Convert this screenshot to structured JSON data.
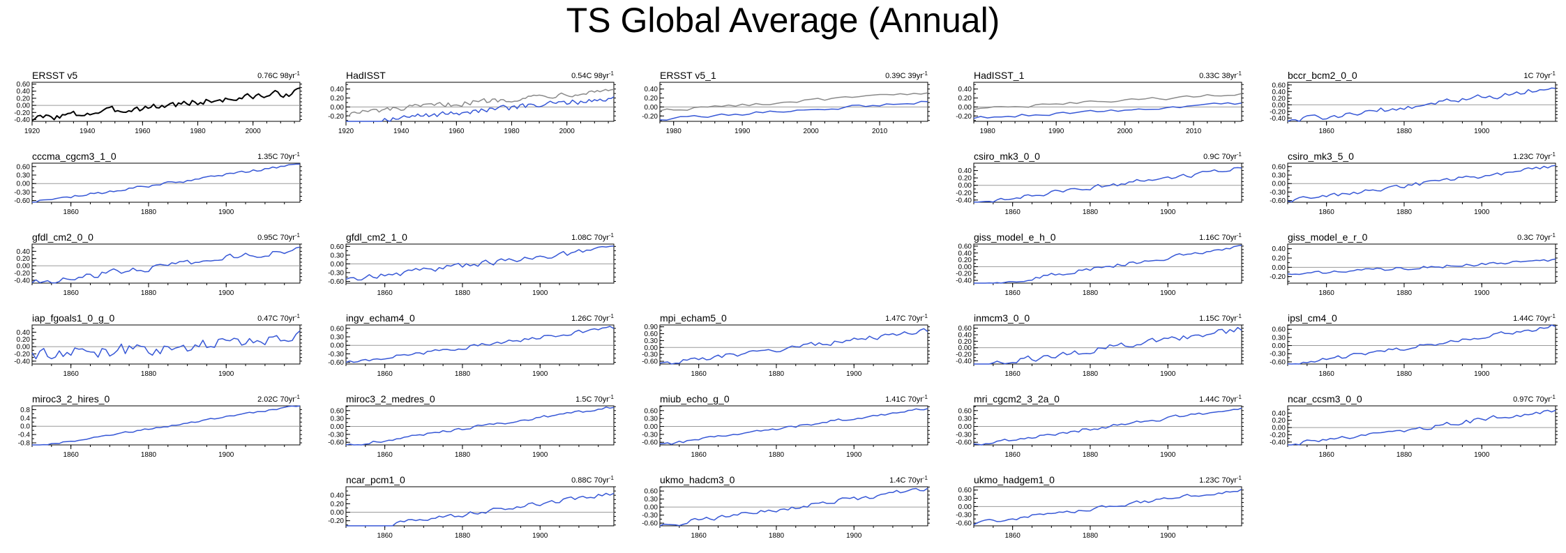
{
  "title": "TS Global Average (Annual)",
  "colors": {
    "model": "#3657d6",
    "obs": "#000000",
    "obs_gray": "#8a8a8a",
    "zero_line": "#9a9a9a"
  },
  "chart_data": [
    {
      "type": "line",
      "name": "ERSST v5",
      "trend_label": "0.76C 98yr",
      "x_start": 1920,
      "x_end": 2017,
      "x_ticks": [
        1920,
        1940,
        1960,
        1980,
        2000
      ],
      "y_ticks": [
        "0.60",
        "0.40",
        "0.20",
        "0.00",
        "-0.20",
        "-0.40"
      ],
      "ylim": [
        -0.45,
        0.65
      ],
      "trend": 0.76,
      "noise": 0.09,
      "series": [
        "obs"
      ],
      "grid_row": 0,
      "grid_col": 0
    },
    {
      "type": "line",
      "name": "HadISST",
      "trend_label": "0.54C 98yr",
      "x_start": 1920,
      "x_end": 2017,
      "x_ticks": [
        1920,
        1940,
        1960,
        1980,
        2000
      ],
      "y_ticks": [
        "0.40",
        "0.20",
        "0.00",
        "-0.20"
      ],
      "ylim": [
        -0.32,
        0.55
      ],
      "trend": 0.54,
      "noise": 0.07,
      "series": [
        "model",
        "obs_gray"
      ],
      "grid_row": 0,
      "grid_col": 1
    },
    {
      "type": "line",
      "name": "ERSST v5_1",
      "trend_label": "0.39C 39yr",
      "x_start": 1978,
      "x_end": 2017,
      "x_ticks": [
        1980,
        1990,
        2000,
        2010
      ],
      "y_ticks": [
        "0.40",
        "0.20",
        "0.00",
        "-0.20"
      ],
      "ylim": [
        -0.32,
        0.55
      ],
      "trend": 0.39,
      "noise": 0.04,
      "series": [
        "model",
        "obs_gray"
      ],
      "grid_row": 0,
      "grid_col": 2
    },
    {
      "type": "line",
      "name": "HadISST_1",
      "trend_label": "0.33C 38yr",
      "x_start": 1978,
      "x_end": 2017,
      "x_ticks": [
        1980,
        1990,
        2000,
        2010
      ],
      "y_ticks": [
        "0.40",
        "0.20",
        "0.00",
        "-0.20"
      ],
      "ylim": [
        -0.32,
        0.55
      ],
      "trend": 0.33,
      "noise": 0.04,
      "series": [
        "model",
        "obs_gray"
      ],
      "grid_row": 0,
      "grid_col": 3
    },
    {
      "type": "line",
      "name": "bccr_bcm2_0_0",
      "trend_label": "1C 70yr",
      "x_start": 1850,
      "x_end": 1919,
      "x_ticks": [
        1860,
        1880,
        1900
      ],
      "y_ticks": [
        "0.60",
        "0.40",
        "0.20",
        "0.00",
        "-0.20",
        "-0.40"
      ],
      "ylim": [
        -0.5,
        0.68
      ],
      "trend": 1.0,
      "noise": 0.08,
      "series": [
        "model"
      ],
      "grid_row": 0,
      "grid_col": 4
    },
    {
      "type": "line",
      "name": "cccma_cgcm3_1_0",
      "trend_label": "1.35C 70yr",
      "x_start": 1850,
      "x_end": 1919,
      "x_ticks": [
        1860,
        1880,
        1900
      ],
      "y_ticks": [
        "0.60",
        "0.30",
        "0.00",
        "-0.30",
        "-0.60"
      ],
      "ylim": [
        -0.66,
        0.72
      ],
      "trend": 1.35,
      "noise": 0.05,
      "series": [
        "model"
      ],
      "grid_row": 1,
      "grid_col": 0
    },
    {
      "type": "line",
      "name": "csiro_mk3_0_0",
      "trend_label": "0.9C 70yr",
      "x_start": 1850,
      "x_end": 1919,
      "x_ticks": [
        1860,
        1880,
        1900
      ],
      "y_ticks": [
        "0.40",
        "0.20",
        "0.00",
        "-0.20",
        "-0.40"
      ],
      "ylim": [
        -0.46,
        0.6
      ],
      "trend": 0.9,
      "noise": 0.06,
      "series": [
        "model"
      ],
      "grid_row": 1,
      "grid_col": 3
    },
    {
      "type": "line",
      "name": "csiro_mk3_5_0",
      "trend_label": "1.23C 70yr",
      "x_start": 1850,
      "x_end": 1919,
      "x_ticks": [
        1860,
        1880,
        1900
      ],
      "y_ticks": [
        "0.60",
        "0.30",
        "0.00",
        "-0.30",
        "-0.60"
      ],
      "ylim": [
        -0.66,
        0.72
      ],
      "trend": 1.23,
      "noise": 0.07,
      "series": [
        "model"
      ],
      "grid_row": 1,
      "grid_col": 4
    },
    {
      "type": "line",
      "name": "gfdl_cm2_0_0",
      "trend_label": "0.95C 70yr",
      "x_start": 1850,
      "x_end": 1919,
      "x_ticks": [
        1860,
        1880,
        1900
      ],
      "y_ticks": [
        "0.40",
        "0.20",
        "0.00",
        "-0.20",
        "-0.40"
      ],
      "ylim": [
        -0.48,
        0.6
      ],
      "trend": 0.95,
      "noise": 0.08,
      "series": [
        "model"
      ],
      "grid_row": 2,
      "grid_col": 0
    },
    {
      "type": "line",
      "name": "gfdl_cm2_1_0",
      "trend_label": "1.08C 70yr",
      "x_start": 1850,
      "x_end": 1919,
      "x_ticks": [
        1860,
        1880,
        1900
      ],
      "y_ticks": [
        "0.60",
        "0.30",
        "0.00",
        "-0.30",
        "-0.60"
      ],
      "ylim": [
        -0.66,
        0.68
      ],
      "trend": 1.08,
      "noise": 0.09,
      "series": [
        "model"
      ],
      "grid_row": 2,
      "grid_col": 1
    },
    {
      "type": "line",
      "name": "giss_model_e_h_0",
      "trend_label": "1.16C 70yr",
      "x_start": 1850,
      "x_end": 1919,
      "x_ticks": [
        1860,
        1880,
        1900
      ],
      "y_ticks": [
        "0.60",
        "0.40",
        "0.20",
        "0.00",
        "-0.20",
        "-0.40"
      ],
      "ylim": [
        -0.48,
        0.66
      ],
      "trend": 1.16,
      "noise": 0.05,
      "series": [
        "model"
      ],
      "grid_row": 2,
      "grid_col": 3
    },
    {
      "type": "line",
      "name": "giss_model_e_r_0",
      "trend_label": "0.3C 70yr",
      "x_start": 1850,
      "x_end": 1919,
      "x_ticks": [
        1860,
        1880,
        1900
      ],
      "y_ticks": [
        "0.40",
        "0.20",
        "0.00",
        "-0.20"
      ],
      "ylim": [
        -0.34,
        0.5
      ],
      "trend": 0.3,
      "noise": 0.03,
      "series": [
        "model"
      ],
      "grid_row": 2,
      "grid_col": 4
    },
    {
      "type": "line",
      "name": "iap_fgoals1_0_g_0",
      "trend_label": "0.47C 70yr",
      "x_start": 1850,
      "x_end": 1919,
      "x_ticks": [
        1860,
        1880,
        1900
      ],
      "y_ticks": [
        "0.40",
        "0.20",
        "0.00",
        "-0.20",
        "-0.40"
      ],
      "ylim": [
        -0.48,
        0.6
      ],
      "trend": 0.47,
      "noise": 0.18,
      "series": [
        "model"
      ],
      "grid_row": 3,
      "grid_col": 0
    },
    {
      "type": "line",
      "name": "ingv_echam4_0",
      "trend_label": "1.26C 70yr",
      "x_start": 1850,
      "x_end": 1919,
      "x_ticks": [
        1860,
        1880,
        1900
      ],
      "y_ticks": [
        "0.60",
        "0.30",
        "0.00",
        "-0.30",
        "-0.60"
      ],
      "ylim": [
        -0.66,
        0.72
      ],
      "trend": 1.26,
      "noise": 0.06,
      "series": [
        "model"
      ],
      "grid_row": 3,
      "grid_col": 1
    },
    {
      "type": "line",
      "name": "mpi_echam5_0",
      "trend_label": "1.47C 70yr",
      "x_start": 1850,
      "x_end": 1919,
      "x_ticks": [
        1860,
        1880,
        1900
      ],
      "y_ticks": [
        "0.90",
        "0.60",
        "0.30",
        "0.00",
        "-0.30",
        "-0.60"
      ],
      "ylim": [
        -0.72,
        0.98
      ],
      "trend": 1.47,
      "noise": 0.1,
      "series": [
        "model"
      ],
      "grid_row": 3,
      "grid_col": 2
    },
    {
      "type": "line",
      "name": "inmcm3_0_0",
      "trend_label": "1.15C 70yr",
      "x_start": 1850,
      "x_end": 1919,
      "x_ticks": [
        1860,
        1880,
        1900
      ],
      "y_ticks": [
        "0.60",
        "0.40",
        "0.20",
        "0.00",
        "-0.20",
        "-0.40"
      ],
      "ylim": [
        -0.5,
        0.7
      ],
      "trend": 1.15,
      "noise": 0.09,
      "series": [
        "model"
      ],
      "grid_row": 3,
      "grid_col": 3
    },
    {
      "type": "line",
      "name": "ipsl_cm4_0",
      "trend_label": "1.44C 70yr",
      "x_start": 1850,
      "x_end": 1919,
      "x_ticks": [
        1860,
        1880,
        1900
      ],
      "y_ticks": [
        "0.60",
        "0.30",
        "0.00",
        "-0.30",
        "-0.60"
      ],
      "ylim": [
        -0.68,
        0.76
      ],
      "trend": 1.44,
      "noise": 0.07,
      "series": [
        "model"
      ],
      "grid_row": 3,
      "grid_col": 4
    },
    {
      "type": "line",
      "name": "miroc3_2_hires_0",
      "trend_label": "2.02C 70yr",
      "x_start": 1850,
      "x_end": 1919,
      "x_ticks": [
        1860,
        1880,
        1900
      ],
      "y_ticks": [
        "0.8",
        "0.4",
        "0.0",
        "-0.4",
        "-0.8"
      ],
      "ylim": [
        -0.9,
        0.98
      ],
      "trend": 2.02,
      "noise": 0.04,
      "series": [
        "model"
      ],
      "grid_row": 4,
      "grid_col": 0
    },
    {
      "type": "line",
      "name": "miroc3_2_medres_0",
      "trend_label": "1.5C 70yr",
      "x_start": 1850,
      "x_end": 1919,
      "x_ticks": [
        1860,
        1880,
        1900
      ],
      "y_ticks": [
        "0.60",
        "0.30",
        "0.00",
        "-0.30",
        "-0.60"
      ],
      "ylim": [
        -0.7,
        0.78
      ],
      "trend": 1.5,
      "noise": 0.05,
      "series": [
        "model"
      ],
      "grid_row": 4,
      "grid_col": 1
    },
    {
      "type": "line",
      "name": "miub_echo_g_0",
      "trend_label": "1.41C 70yr",
      "x_start": 1850,
      "x_end": 1919,
      "x_ticks": [
        1860,
        1880,
        1900
      ],
      "y_ticks": [
        "0.60",
        "0.30",
        "0.00",
        "-0.30",
        "-0.60"
      ],
      "ylim": [
        -0.7,
        0.78
      ],
      "trend": 1.41,
      "noise": 0.05,
      "series": [
        "model"
      ],
      "grid_row": 4,
      "grid_col": 2
    },
    {
      "type": "line",
      "name": "mri_cgcm2_3_2a_0",
      "trend_label": "1.44C 70yr",
      "x_start": 1850,
      "x_end": 1919,
      "x_ticks": [
        1860,
        1880,
        1900
      ],
      "y_ticks": [
        "0.60",
        "0.30",
        "0.00",
        "-0.30",
        "-0.60"
      ],
      "ylim": [
        -0.7,
        0.78
      ],
      "trend": 1.44,
      "noise": 0.06,
      "series": [
        "model"
      ],
      "grid_row": 4,
      "grid_col": 3
    },
    {
      "type": "line",
      "name": "ncar_ccsm3_0_0",
      "trend_label": "0.97C 70yr",
      "x_start": 1850,
      "x_end": 1919,
      "x_ticks": [
        1860,
        1880,
        1900
      ],
      "y_ticks": [
        "0.40",
        "0.20",
        "0.00",
        "-0.20",
        "-0.40"
      ],
      "ylim": [
        -0.48,
        0.6
      ],
      "trend": 0.97,
      "noise": 0.06,
      "series": [
        "model"
      ],
      "grid_row": 4,
      "grid_col": 4
    },
    {
      "type": "line",
      "name": "ncar_pcm1_0",
      "trend_label": "0.88C 70yr",
      "x_start": 1850,
      "x_end": 1919,
      "x_ticks": [
        1860,
        1880,
        1900
      ],
      "y_ticks": [
        "0.40",
        "0.20",
        "0.00",
        "-0.20"
      ],
      "ylim": [
        -0.32,
        0.6
      ],
      "trend": 0.88,
      "noise": 0.05,
      "series": [
        "model"
      ],
      "grid_row": 5,
      "grid_col": 1
    },
    {
      "type": "line",
      "name": "ukmo_hadcm3_0",
      "trend_label": "1.4C 70yr",
      "x_start": 1850,
      "x_end": 1919,
      "x_ticks": [
        1860,
        1880,
        1900
      ],
      "y_ticks": [
        "0.60",
        "0.30",
        "0.00",
        "-0.30",
        "-0.60"
      ],
      "ylim": [
        -0.7,
        0.76
      ],
      "trend": 1.4,
      "noise": 0.08,
      "series": [
        "model"
      ],
      "grid_row": 5,
      "grid_col": 2
    },
    {
      "type": "line",
      "name": "ukmo_hadgem1_0",
      "trend_label": "1.23C 70yr",
      "x_start": 1850,
      "x_end": 1919,
      "x_ticks": [
        1860,
        1880,
        1900
      ],
      "y_ticks": [
        "0.60",
        "0.30",
        "0.00",
        "-0.30",
        "-0.60"
      ],
      "ylim": [
        -0.7,
        0.72
      ],
      "trend": 1.23,
      "noise": 0.06,
      "series": [
        "model"
      ],
      "grid_row": 5,
      "grid_col": 3
    }
  ]
}
